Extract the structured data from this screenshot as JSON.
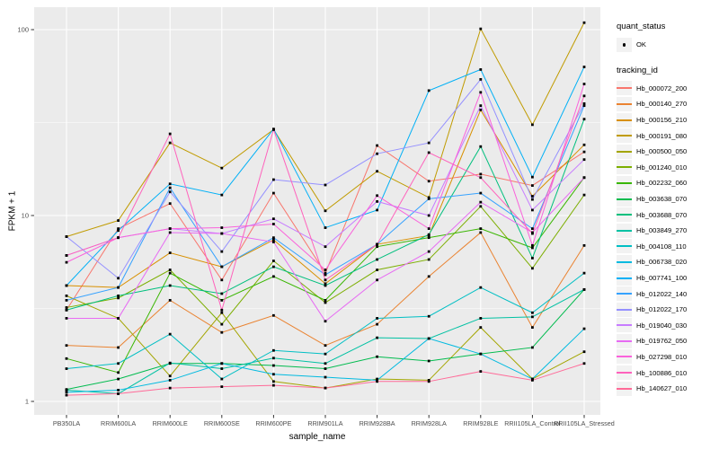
{
  "figure": {
    "background": "#FFFFFF",
    "panel_background": "#EBEBEB",
    "gridline_color": "#FFFFFF",
    "axis_text_color": "#4D4D4D",
    "tick_color": "#333333",
    "point_color": "#000000"
  },
  "legend": {
    "quant_status": {
      "title": "quant_status",
      "items": [
        {
          "label": "OK",
          "marker": "black-point"
        }
      ]
    },
    "tracking_id": {
      "title": "tracking_id"
    }
  },
  "chart_data": {
    "type": "line",
    "title": "",
    "xlabel": "sample_name",
    "ylabel": "FPKM + 1",
    "y_scale": "log10",
    "y_ticks": [
      1,
      10,
      100
    ],
    "y_minor_ticks": [
      3.1623,
      31.623
    ],
    "ylim": [
      0.87,
      135
    ],
    "grid": true,
    "legend_position": "right",
    "point_shape": "small-black-square",
    "categories": [
      "PB350LA",
      "RRIM600LA",
      "RRIM600LE",
      "RRIM600SE",
      "RRIM600PE",
      "RRIM901LA",
      "RRIM928BA",
      "RRIM928LA",
      "RRIM928LE",
      "RRII105LA_Control",
      "RRII105LA_Stressed"
    ],
    "series": [
      {
        "name": "Hb_000072_200",
        "color": "#F8766D",
        "values": [
          3.1,
          8.5,
          11.6,
          4.5,
          13.2,
          4.9,
          23.8,
          15.3,
          16.7,
          14.5,
          22
        ]
      },
      {
        "name": "Hb_000140_270",
        "color": "#EA8331",
        "values": [
          2.0,
          1.95,
          3.5,
          2.35,
          2.9,
          2.0,
          2.6,
          4.7,
          8.1,
          2.5,
          6.9
        ]
      },
      {
        "name": "Hb_000156_210",
        "color": "#D89000",
        "values": [
          4.2,
          4.1,
          6.3,
          5.3,
          7.4,
          4.3,
          7.0,
          7.8,
          37,
          12.7,
          24
        ]
      },
      {
        "name": "Hb_000191_080",
        "color": "#C09B00",
        "values": [
          7.7,
          9.4,
          24.6,
          18.0,
          29.0,
          10.6,
          17.3,
          12.5,
          101,
          30.8,
          109
        ]
      },
      {
        "name": "Hb_000500_050",
        "color": "#A3A500",
        "values": [
          3.7,
          2.8,
          1.37,
          3.0,
          1.28,
          1.18,
          1.32,
          1.3,
          2.5,
          1.32,
          1.85
        ]
      },
      {
        "name": "Hb_001240_010",
        "color": "#7CAE00",
        "values": [
          3.2,
          3.6,
          5.1,
          2.6,
          5.7,
          3.4,
          5.1,
          5.8,
          11.2,
          5.2,
          12.9
        ]
      },
      {
        "name": "Hb_002232_060",
        "color": "#39B600",
        "values": [
          1.7,
          1.43,
          4.9,
          3.5,
          4.7,
          3.5,
          6.8,
          7.6,
          8.5,
          6.7,
          16
        ]
      },
      {
        "name": "Hb_003638_070",
        "color": "#00BB4E",
        "values": [
          1.16,
          1.32,
          1.6,
          1.6,
          1.56,
          1.5,
          1.74,
          1.65,
          1.8,
          1.95,
          4.0
        ]
      },
      {
        "name": "Hb_003688_070",
        "color": "#00BF7D",
        "values": [
          3.1,
          3.7,
          4.2,
          3.8,
          5.3,
          4.2,
          5.8,
          7.9,
          23.5,
          5.9,
          33
        ]
      },
      {
        "name": "Hb_003849_270",
        "color": "#00C1A3",
        "values": [
          1.15,
          1.1,
          1.61,
          1.5,
          1.71,
          1.6,
          2.2,
          2.18,
          2.8,
          2.85,
          4.0
        ]
      },
      {
        "name": "Hb_004108_110",
        "color": "#00BFC4",
        "values": [
          1.5,
          1.6,
          2.3,
          1.32,
          1.88,
          1.8,
          2.8,
          2.87,
          4.1,
          3.0,
          4.9
        ]
      },
      {
        "name": "Hb_006738_020",
        "color": "#00BAE0",
        "values": [
          1.12,
          1.15,
          1.3,
          1.6,
          1.4,
          1.35,
          1.3,
          2.18,
          1.8,
          1.32,
          2.46
        ]
      },
      {
        "name": "Hb_007741_100",
        "color": "#00B0F6",
        "values": [
          4.2,
          8.3,
          14.8,
          12.9,
          29.2,
          8.6,
          10.7,
          47,
          61,
          16.1,
          63
        ]
      },
      {
        "name": "Hb_012022_140",
        "color": "#35A2FF",
        "values": [
          3.5,
          4.1,
          14.1,
          5.3,
          7.6,
          4.8,
          7.0,
          12.3,
          13.2,
          8.5,
          39
        ]
      },
      {
        "name": "Hb_012022_170",
        "color": "#9590FF",
        "values": [
          7.7,
          4.6,
          13.4,
          6.4,
          15.6,
          14.6,
          21.5,
          24.6,
          54,
          12.2,
          40
        ]
      },
      {
        "name": "Hb_019040_030",
        "color": "#C77CFF",
        "values": [
          6.1,
          7.6,
          8.5,
          8.0,
          9.6,
          6.8,
          11.9,
          10.0,
          39,
          10.7,
          20
        ]
      },
      {
        "name": "Hb_019762_050",
        "color": "#E76BF3",
        "values": [
          2.8,
          2.8,
          8.1,
          8.0,
          7.2,
          2.7,
          4.5,
          6.4,
          11.8,
          8.1,
          16
        ]
      },
      {
        "name": "Hb_027298_010",
        "color": "#FA62DB",
        "values": [
          5.6,
          7.6,
          8.5,
          8.6,
          9.0,
          5.1,
          12.8,
          8.5,
          46,
          6.9,
          51
        ]
      },
      {
        "name": "Hb_100886_010",
        "color": "#FF62BC",
        "values": [
          6.1,
          7.6,
          27.5,
          3.1,
          29.0,
          4.5,
          7.0,
          21.8,
          16.0,
          8.0,
          44
        ]
      },
      {
        "name": "Hb_140627_010",
        "color": "#FF6A98",
        "values": [
          1.08,
          1.1,
          1.18,
          1.2,
          1.22,
          1.18,
          1.28,
          1.28,
          1.45,
          1.3,
          1.6
        ]
      }
    ]
  }
}
